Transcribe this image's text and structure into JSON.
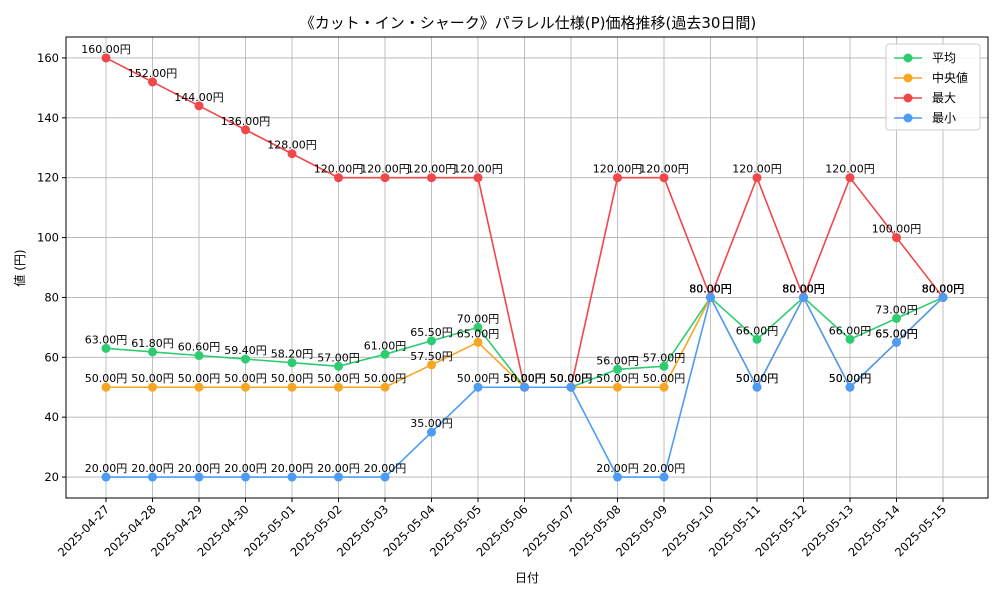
{
  "chart_data": {
    "type": "line",
    "title": "《カット・イン・シャーク》パラレル仕様(P)価格推移(過去30日間)",
    "xlabel": "日付",
    "ylabel": "値 (円)",
    "ylim": [
      13,
      167
    ],
    "yticks": [
      20,
      40,
      60,
      80,
      100,
      120,
      140,
      160
    ],
    "grid": true,
    "legend_position": "top-right",
    "label_suffix": "円",
    "categories": [
      "2025-04-27",
      "2025-04-28",
      "2025-04-29",
      "2025-04-30",
      "2025-05-01",
      "2025-05-02",
      "2025-05-03",
      "2025-05-04",
      "2025-05-05",
      "2025-05-06",
      "2025-05-07",
      "2025-05-08",
      "2025-05-09",
      "2025-05-10",
      "2025-05-11",
      "2025-05-12",
      "2025-05-13",
      "2025-05-14",
      "2025-05-15"
    ],
    "series": [
      {
        "name": "平均",
        "color": "#2ecc71",
        "values": [
          63,
          61.8,
          60.6,
          59.4,
          58.2,
          57,
          61,
          65.5,
          70,
          50,
          50,
          56,
          57,
          80,
          66,
          80,
          66,
          73,
          80
        ]
      },
      {
        "name": "中央値",
        "color": "#f5a623",
        "values": [
          50,
          50,
          50,
          50,
          50,
          50,
          50,
          57.5,
          65,
          50,
          50,
          50,
          50,
          80,
          50,
          80,
          50,
          65,
          80
        ]
      },
      {
        "name": "最大",
        "color": "#f0474a",
        "values": [
          160,
          152,
          144,
          136,
          128,
          120,
          120,
          120,
          120,
          50,
          50,
          120,
          120,
          80,
          120,
          80,
          120,
          100,
          80
        ]
      },
      {
        "name": "最小",
        "color": "#4c9cf5",
        "values": [
          20,
          20,
          20,
          20,
          20,
          20,
          20,
          35,
          50,
          50,
          50,
          20,
          20,
          80,
          50,
          80,
          50,
          65,
          80
        ]
      }
    ]
  }
}
